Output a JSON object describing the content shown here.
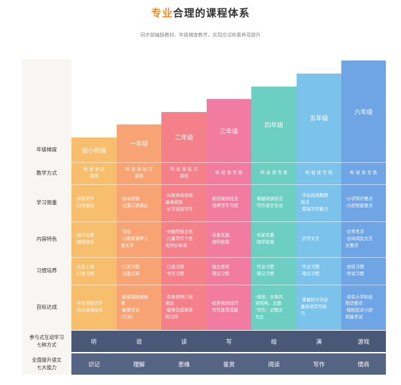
{
  "header": {
    "title_highlight": "专业",
    "title_rest": "合理的课程体系",
    "subtitle": "同步部编版教材，年级梯度教学，实现应试和素养双提升"
  },
  "row_labels": {
    "grade": "年级梯度",
    "method": "教学方式",
    "focus": "学习侧重",
    "content": "内容特色",
    "habit": "习惯培养",
    "goal": "目标达成"
  },
  "colors": {
    "col0": "#f7be6e",
    "col1": "#f8a374",
    "col2": "#f48189",
    "col3": "#f17ba1",
    "col4": "#6dcfc2",
    "col5": "#7cc3ec",
    "col6": "#6fa5e5",
    "bar1": "#4a5878",
    "bar2": "#566483",
    "title_accent": "#f08a1e"
  },
  "columns": [
    {
      "grade": "幼小衔接",
      "method": "听 说 读 玩\n游戏",
      "focus": "·拼音识字\n·口语表达",
      "content": "·国学启蒙\n·趣味拼音",
      "habit": "·认真上课\n·口述习惯",
      "goal": "·学会拼音识字\n·独立阅读绘本"
    },
    {
      "grade": "一年级",
      "method": "听 说 读 玩 写\n游戏",
      "focus": "·绘本阅读\n·注重口语表达",
      "content": "·写绘\n·儿歌童谣等儿\n  童文学",
      "habit": "·口述习惯\n·自我认知",
      "goal": "·能够看图讲故\n  事\n·能够写话\n  (几句)"
    },
    {
      "grade": "二年级",
      "method": "听 说 读 玩 写\n游戏",
      "focus": "·从绘本阅读到\n  基本阅读\n·从写话到写作",
      "content": "·中国传统文化\n·儿童写作个性\n  化评价体系",
      "habit": "·口述习惯\n·书写习惯",
      "goal": "·有条理地口语\n  表达\n·能够完成简单\n  的习作"
    },
    {
      "grade": "三年级",
      "method": "听 说 读 写 练",
      "focus": "·初识阅读技法\n·培养写作习惯",
      "content": "·名家名篇\n·国学经典",
      "habit": "·独立思考\n·笔记习惯",
      "goal": "·初步阅读技巧\n·写作连贯成篇"
    },
    {
      "grade": "四年级",
      "method": "听 说 读 写 练",
      "focus": "·掌握阅读技法\n·写作语言生动",
      "content": "·名家名篇\n·国学经典",
      "habit": "·作业习惯\n·笔记习惯",
      "goal": "·阅读：文章内\n  容结构、主题\n·写作：记叙文\n  为主"
    },
    {
      "grade": "五年级",
      "method": "听 说 读 写 练",
      "focus": "·学会阅读解题\n  技法\n·提高写作能力",
      "content": "·识字文言",
      "habit": "·作业习惯\n·笔记习惯",
      "goal": "·掌握好小学必\n  备阅读写作技\n  巧"
    },
    {
      "grade": "六年级",
      "method": "听 说 读 写 练",
      "focus": "·小学知识要点\n·小初衔接要点",
      "content": "·文常考点\n·古诗词及文言\n  文要点",
      "habit": "·总结习惯\n·考试习惯",
      "goal": "·夯实小学阶段\n  知识要点\n·轻松应对小初\n  衔接考试"
    }
  ],
  "bands": [
    {
      "label": "参与式互动学习\n七种方式",
      "items": [
        "听",
        "说",
        "读",
        "写",
        "绘",
        "演",
        "游戏"
      ]
    },
    {
      "label": "全面提升语文\n七大能力",
      "items": [
        "识记",
        "理解",
        "思维",
        "鉴赏",
        "阅读",
        "写作",
        "情商"
      ]
    }
  ]
}
